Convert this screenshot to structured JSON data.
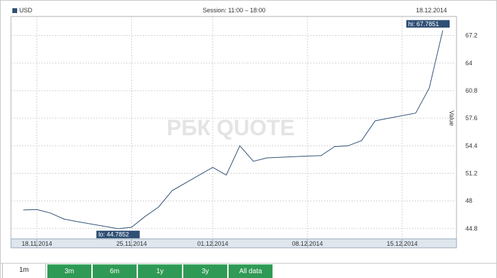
{
  "header": {
    "legend_label": "USD",
    "session": "Session: 11:00 – 18:00",
    "date": "18.12.2014"
  },
  "colors": {
    "line": "#2f4f75",
    "grid": "#d0d0d0",
    "axis_bar": "#dfe6ee",
    "tab_active_bg": "#ffffff",
    "tab_bg": "#2f9a55",
    "label_bg": "#2f4f75"
  },
  "tabs": [
    {
      "label": "1m",
      "active": true
    },
    {
      "label": "3m",
      "active": false
    },
    {
      "label": "6m",
      "active": false
    },
    {
      "label": "1y",
      "active": false
    },
    {
      "label": "3y",
      "active": false
    },
    {
      "label": "All data",
      "active": false
    }
  ],
  "watermark": "РБК QUOTE",
  "chart_data": {
    "type": "line",
    "ylabel": "Value",
    "ylim": [
      43.6,
      69.4
    ],
    "yticks": [
      44.8,
      48,
      51.2,
      54.4,
      57.6,
      60.8,
      64,
      67.2
    ],
    "ytick_labels": [
      "44.8",
      "48",
      "51.2",
      "54.4",
      "57.6",
      "60.8",
      "64",
      "67.2"
    ],
    "xticks": [
      {
        "date": "18.11.2014",
        "label": "18.11.2014"
      },
      {
        "date": "25.11.2014",
        "label": "25.11.2014"
      },
      {
        "date": "01.12.2014",
        "label": "01.12.2014"
      },
      {
        "date": "08.12.2014",
        "label": "08.12.2014"
      },
      {
        "date": "15.12.2014",
        "label": "15.12.2014"
      }
    ],
    "grid": true,
    "series": [
      {
        "name": "USD",
        "points": [
          {
            "x": "17.11.2014",
            "y": 46.95
          },
          {
            "x": "18.11.2014",
            "y": 47.0
          },
          {
            "x": "19.11.2014",
            "y": 46.6
          },
          {
            "x": "20.11.2014",
            "y": 45.9
          },
          {
            "x": "21.11.2014",
            "y": 45.6
          },
          {
            "x": "24.11.2014",
            "y": 44.7852
          },
          {
            "x": "25.11.2014",
            "y": 44.95
          },
          {
            "x": "26.11.2014",
            "y": 46.2
          },
          {
            "x": "27.11.2014",
            "y": 47.3
          },
          {
            "x": "28.11.2014",
            "y": 49.2
          },
          {
            "x": "01.12.2014",
            "y": 51.9
          },
          {
            "x": "02.12.2014",
            "y": 51.0
          },
          {
            "x": "03.12.2014",
            "y": 54.4
          },
          {
            "x": "04.12.2014",
            "y": 52.6
          },
          {
            "x": "05.12.2014",
            "y": 53.0
          },
          {
            "x": "08.12.2014",
            "y": 53.2
          },
          {
            "x": "09.12.2014",
            "y": 53.25
          },
          {
            "x": "10.12.2014",
            "y": 54.3
          },
          {
            "x": "11.12.2014",
            "y": 54.4
          },
          {
            "x": "12.12.2014",
            "y": 55.0
          },
          {
            "x": "13.12.2014",
            "y": 57.3
          },
          {
            "x": "16.12.2014",
            "y": 58.2
          },
          {
            "x": "17.12.2014",
            "y": 61.1
          },
          {
            "x": "18.12.2014",
            "y": 67.7851
          }
        ]
      }
    ],
    "annotations": {
      "hi": "hi: 67.7851",
      "lo": "lo: 44.7852"
    }
  }
}
